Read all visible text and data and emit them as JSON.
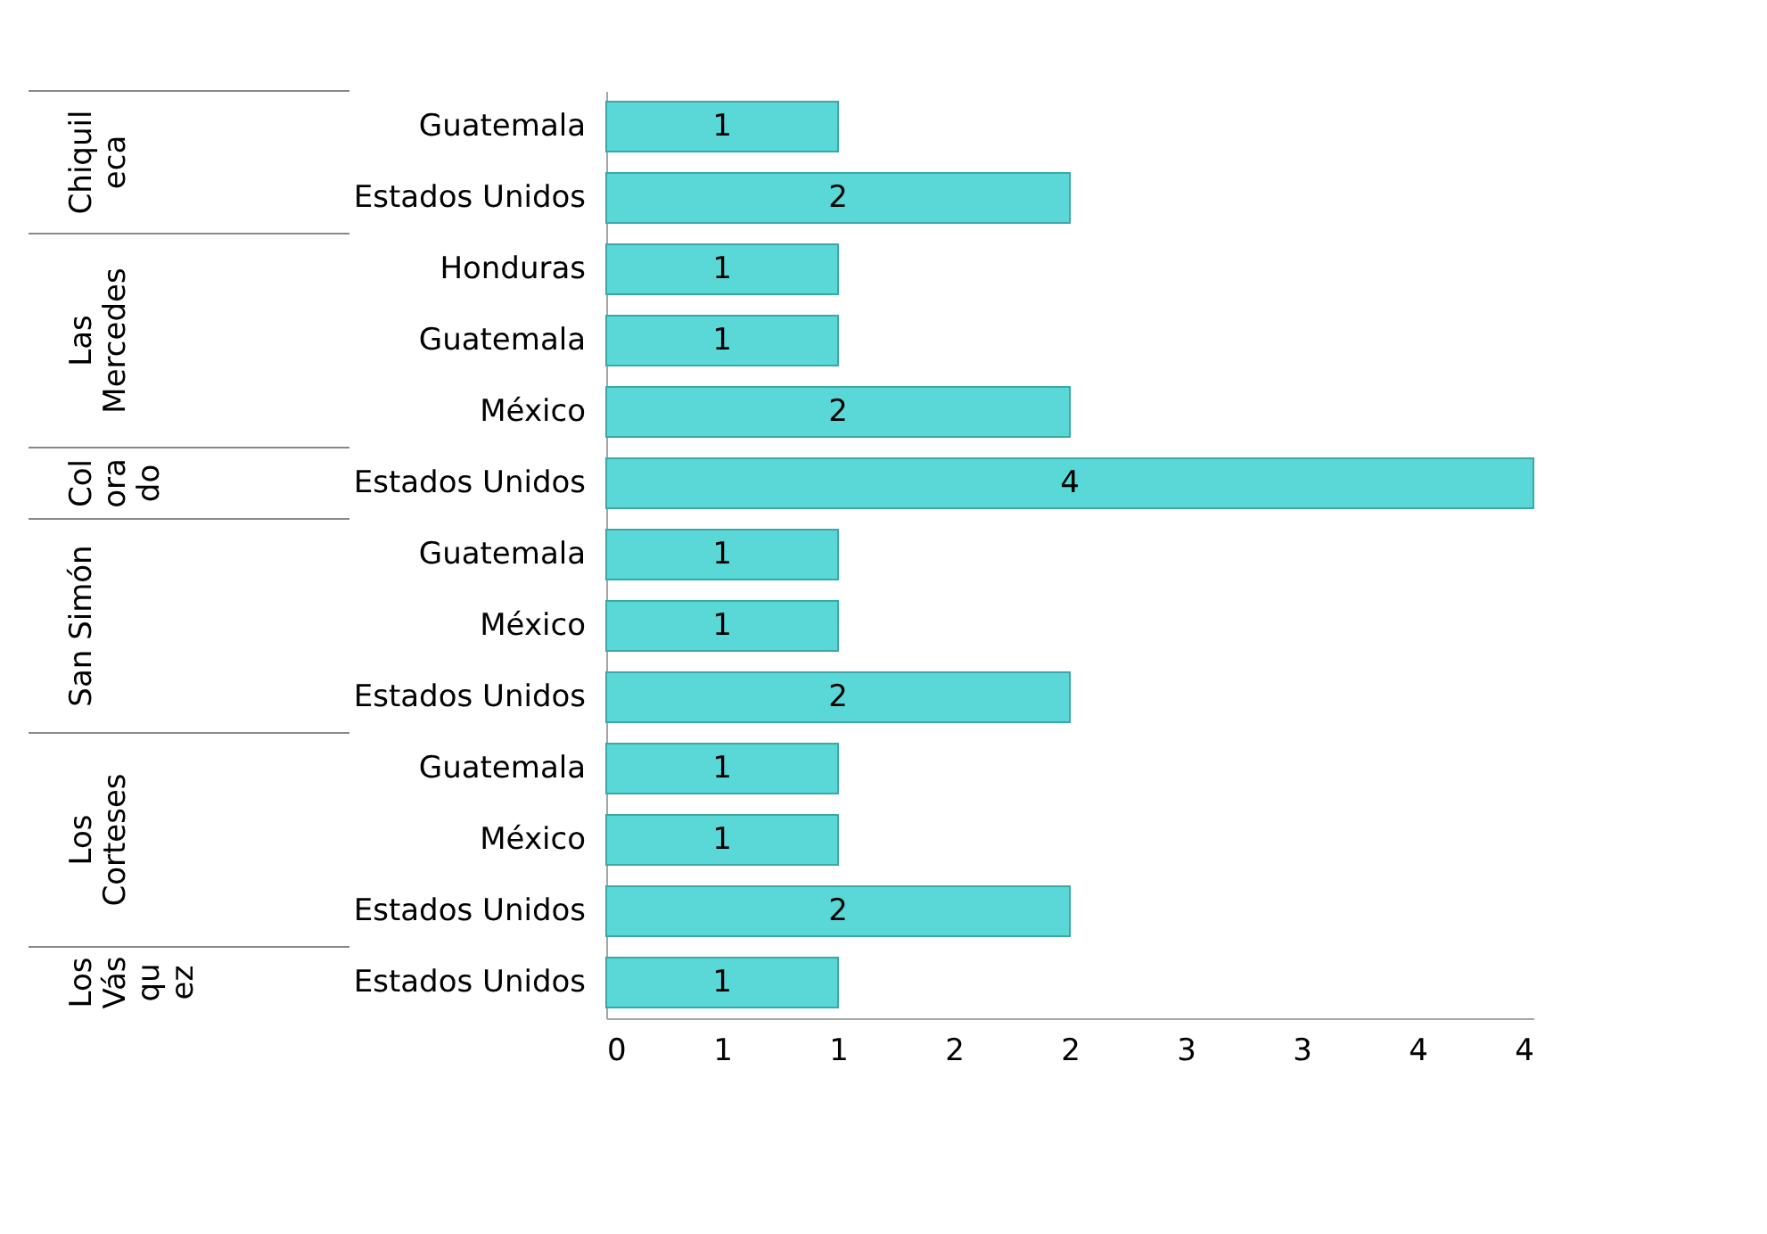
{
  "chart_data": {
    "type": "bar",
    "orientation": "horizontal",
    "categories": [
      "Guatemala",
      "Estados Unidos",
      "Honduras",
      "Guatemala",
      "México",
      "Estados Unidos",
      "Guatemala",
      "México",
      "Estados Unidos",
      "Guatemala",
      "México",
      "Estados Unidos",
      "Estados Unidos"
    ],
    "values": [
      1,
      2,
      1,
      1,
      2,
      4,
      1,
      1,
      2,
      1,
      1,
      2,
      1
    ],
    "color": "#5ad8d8",
    "xlim": [
      0,
      4
    ],
    "xticks": [
      0,
      {
        "value": 0.5,
        "label": "1"
      },
      1,
      {
        "value": 1.5,
        "label": "2"
      },
      2,
      {
        "value": 2.5,
        "label": "3"
      },
      3,
      {
        "value": 3.5,
        "label": "4"
      },
      4
    ],
    "data_labels": true,
    "grid": false,
    "annotations": [
      "Chiquil\neca",
      "Las\nMercedes",
      "Col\nora\ndo",
      "San Simón",
      "Los\nCorteses",
      "Los\nVás\nqu\nez"
    ]
  }
}
